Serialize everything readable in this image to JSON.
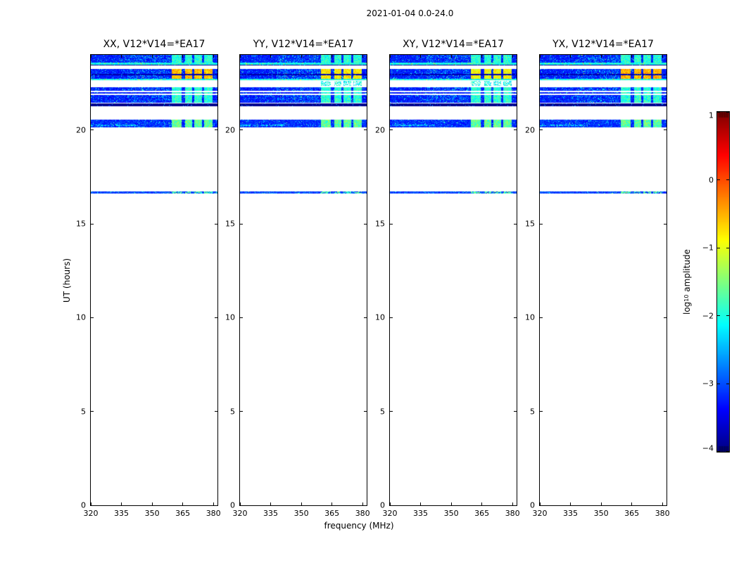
{
  "figure": {
    "title": "2021-01-04 0.0-24.0",
    "background": "#ffffff",
    "frame_color": "#000000"
  },
  "chart_data": {
    "type": "heatmap",
    "title": "2021-01-04 0.0-24.0",
    "xlabel": "frequency (MHz)",
    "ylabel": "UT (hours)",
    "xlim": [
      320,
      382
    ],
    "ylim": [
      0,
      24
    ],
    "xticks": [
      320,
      335,
      350,
      365,
      380
    ],
    "xticklabels": [
      "320",
      "335",
      "350",
      "365",
      "380"
    ],
    "yticks": [
      0,
      5,
      10,
      15,
      20
    ],
    "yticklabels": [
      "0",
      "5",
      "10",
      "15",
      "20"
    ],
    "grid": false,
    "panels": [
      {
        "label": "XX, V12*V14=*EA17",
        "seed": 7,
        "hot_base": -0.55,
        "gap_rfi": false
      },
      {
        "label": "YY, V12*V14=*EA17",
        "seed": 11,
        "hot_base": -0.8,
        "gap_rfi": true
      },
      {
        "label": "XY, V12*V14=*EA17",
        "seed": 13,
        "hot_base": -0.9,
        "gap_rfi": true
      },
      {
        "label": "YX, V12*V14=*EA17",
        "seed": 17,
        "hot_base": -0.5,
        "gap_rfi": false
      }
    ],
    "colorbar": {
      "label_prefix": "log",
      "label_sub": "10",
      "label_suffix": " amplitude",
      "colormap": "jet",
      "lim": [
        -4,
        1
      ],
      "ticks": [
        1,
        0,
        -1,
        -2,
        -3,
        -4
      ],
      "ticklabels": [
        "1",
        "0",
        "−1",
        "−2",
        "−3",
        "−4"
      ]
    },
    "hot_blocks_mhz": [
      [
        359.5,
        364.5
      ],
      [
        366,
        369.5
      ],
      [
        370.5,
        374.5
      ],
      [
        375.5,
        379.5
      ]
    ],
    "bands": [
      {
        "ut": [
          24.0,
          23.59
        ],
        "base": -3.5,
        "spread": 0.55,
        "hot": "cyan",
        "mid": true
      },
      {
        "ut": [
          23.57,
          23.49
        ],
        "base": -2.4,
        "spread": 0.7,
        "hot": "cyan",
        "mid": false
      },
      {
        "ut": [
          23.48,
          23.42
        ],
        "base": -3.92,
        "spread": 0.1,
        "hot": "none",
        "mid": false
      },
      {
        "ut": [
          23.25,
          22.99
        ],
        "base": -3.5,
        "spread": 0.55,
        "hot": "orange",
        "mid": true
      },
      {
        "ut": [
          22.99,
          22.93
        ],
        "base": -3.85,
        "spread": 0.15,
        "hot": "none",
        "mid": false
      },
      {
        "ut": [
          22.93,
          22.73
        ],
        "base": -3.5,
        "spread": 0.55,
        "hot": "orange",
        "mid": true
      },
      {
        "ut": [
          22.73,
          22.64
        ],
        "base": -2.4,
        "spread": 0.7,
        "hot": "cyan",
        "mid": false
      },
      {
        "ut": [
          22.61,
          22.35
        ],
        "base": -2.5,
        "spread": 0.8,
        "hot": "cyan",
        "mid": false,
        "only_hot": true
      },
      {
        "ut": [
          22.28,
          22.07
        ],
        "base": -3.5,
        "spread": 0.55,
        "hot": "cyan",
        "mid": true
      },
      {
        "ut": [
          22.0,
          21.94
        ],
        "base": -3.5,
        "spread": 0.55,
        "hot": "cyan",
        "mid": false
      },
      {
        "ut": [
          21.86,
          21.45
        ],
        "base": -3.5,
        "spread": 0.55,
        "hot": "cyan",
        "mid": true
      },
      {
        "ut": [
          21.43,
          21.28
        ],
        "base": -3.96,
        "spread": 0.05,
        "hot": "none",
        "mid": false
      },
      {
        "ut": [
          20.55,
          20.14
        ],
        "base": -3.45,
        "spread": 0.6,
        "hot": "green",
        "mid": false
      },
      {
        "ut": [
          16.74,
          16.63
        ],
        "base": -3.35,
        "spread": 0.6,
        "hot": "speckle",
        "mid": false
      }
    ]
  }
}
